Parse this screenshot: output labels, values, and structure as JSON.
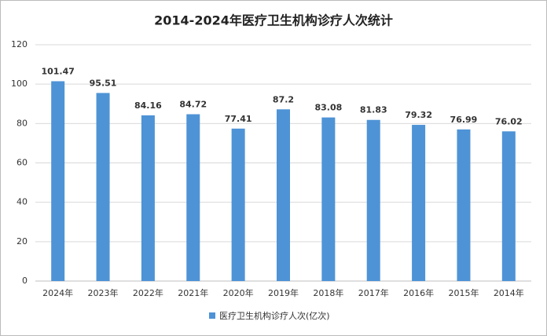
{
  "chart_data": {
    "type": "bar",
    "title": "2014-2024年医疗卫生机构诊疗人次统计",
    "categories": [
      "2024年",
      "2023年",
      "2022年",
      "2021年",
      "2020年",
      "2019年",
      "2018年",
      "2017年",
      "2016年",
      "2015年",
      "2014年"
    ],
    "series": [
      {
        "name": "医疗卫生机构诊疗人次(亿次)",
        "color": "#4e93d6",
        "values": [
          101.47,
          95.51,
          84.16,
          84.72,
          77.41,
          87.2,
          83.08,
          81.83,
          79.32,
          76.99,
          76.02
        ]
      }
    ],
    "ylim": [
      0,
      120
    ],
    "yticks": [
      0,
      20,
      40,
      60,
      80,
      100,
      120
    ],
    "grid": true,
    "legend": "bottom"
  }
}
